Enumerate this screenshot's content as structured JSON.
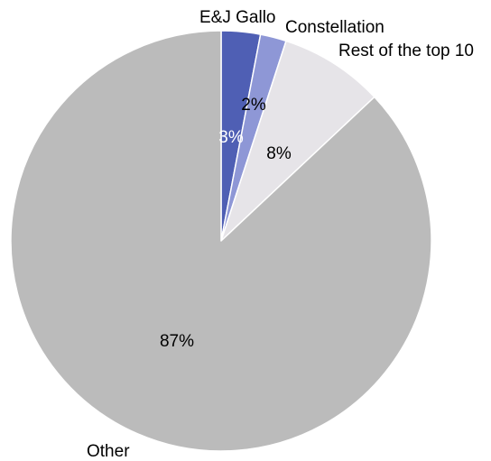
{
  "chart_data": {
    "type": "pie",
    "title": "",
    "start_angle_deg": 0,
    "direction": "clockwise",
    "slices": [
      {
        "label": "E&J Gallo",
        "value": 3,
        "value_label": "3%",
        "color": "#4f5fb4",
        "value_label_color": "#ffffff"
      },
      {
        "label": "Constellation",
        "value": 2,
        "value_label": "2%",
        "color": "#8e97d6",
        "value_label_color": "#000000"
      },
      {
        "label": "Rest of the top 10",
        "value": 8,
        "value_label": "8%",
        "color": "#e6e4e8",
        "value_label_color": "#000000"
      },
      {
        "label": "Other",
        "value": 87,
        "value_label": "87%",
        "color": "#bbbbbb",
        "value_label_color": "#000000"
      }
    ]
  }
}
